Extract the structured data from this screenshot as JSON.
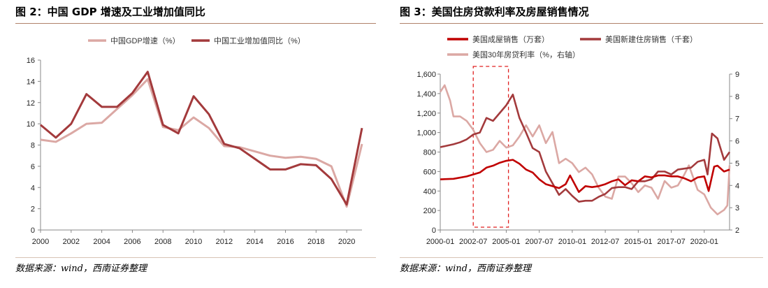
{
  "charts": [
    {
      "title": "图 2：中国 GDP 增速及工业增加值同比",
      "source": "数据来源：wind，西南证券整理"
    },
    {
      "title": "图 3：美国住房贷款利率及房屋销售情况",
      "source": "数据来源：wind，西南证券整理"
    }
  ],
  "chart_data": [
    {
      "type": "line",
      "title": "图 2：中国 GDP 增速及工业增加值同比",
      "xlabel": "",
      "ylabel": "",
      "xlim": [
        2000,
        2021
      ],
      "ylim": [
        0,
        16
      ],
      "yticks": [
        0,
        2,
        4,
        6,
        8,
        10,
        12,
        14,
        16
      ],
      "xticks": [
        2000,
        2002,
        2004,
        2006,
        2008,
        2010,
        2012,
        2014,
        2016,
        2018,
        2020
      ],
      "grid": false,
      "legend": "top",
      "x": [
        2000,
        2001,
        2002,
        2003,
        2004,
        2005,
        2006,
        2007,
        2008,
        2009,
        2010,
        2011,
        2012,
        2013,
        2014,
        2015,
        2016,
        2017,
        2018,
        2019,
        2020,
        2021
      ],
      "series": [
        {
          "name": "中国GDP增速（%）",
          "color": "#dba8a4",
          "values": [
            8.5,
            8.3,
            9.1,
            10.0,
            10.1,
            11.4,
            12.7,
            14.2,
            9.7,
            9.4,
            10.6,
            9.6,
            7.9,
            7.8,
            7.4,
            7.0,
            6.8,
            6.9,
            6.7,
            6.0,
            2.2,
            8.1
          ]
        },
        {
          "name": "中国工业增加值同比（%）",
          "color": "#a33a3c",
          "values": [
            9.9,
            8.7,
            10.0,
            12.8,
            11.6,
            11.6,
            12.9,
            14.9,
            9.9,
            9.1,
            12.6,
            10.9,
            8.1,
            7.7,
            6.7,
            5.7,
            5.7,
            6.2,
            6.1,
            4.8,
            2.4,
            9.6
          ]
        }
      ]
    },
    {
      "type": "line",
      "title": "图 3：美国住房贷款利率及房屋销售情况",
      "xlabel": "",
      "ylabel": "",
      "grid": false,
      "legend": "top",
      "x_range": [
        "2000-01",
        "2021-12"
      ],
      "xticks": [
        "2000-01",
        "2002-07",
        "2005-01",
        "2007-07",
        "2010-01",
        "2012-07",
        "2015-01",
        "2017-07",
        "2020-01"
      ],
      "ylim_left": [
        0,
        1600
      ],
      "yticks_left": [
        0,
        200,
        400,
        600,
        800,
        1000,
        1200,
        1400,
        1600
      ],
      "ytick_labels_left": [
        "0",
        "200",
        "400",
        "600",
        "800",
        "1,000",
        "1,200",
        "1,400",
        "1,600"
      ],
      "ylim_right": [
        2,
        9
      ],
      "yticks_right": [
        2,
        3,
        4,
        5,
        6,
        7,
        8,
        9
      ],
      "highlight_box": {
        "x_range": [
          "2002-07",
          "2005-03"
        ],
        "style": "dashed"
      },
      "series": [
        {
          "name": "美国成屋销售（万套）",
          "axis": "left",
          "color": "#c00000",
          "points": [
            [
              "2000-01",
              520
            ],
            [
              "2001-01",
              525
            ],
            [
              "2002-01",
              550
            ],
            [
              "2003-01",
              590
            ],
            [
              "2003-07",
              640
            ],
            [
              "2004-01",
              660
            ],
            [
              "2004-07",
              690
            ],
            [
              "2005-01",
              710
            ],
            [
              "2005-07",
              720
            ],
            [
              "2006-01",
              680
            ],
            [
              "2006-07",
              620
            ],
            [
              "2007-01",
              590
            ],
            [
              "2007-07",
              520
            ],
            [
              "2008-01",
              470
            ],
            [
              "2008-07",
              450
            ],
            [
              "2009-01",
              430
            ],
            [
              "2009-07",
              470
            ],
            [
              "2009-11",
              560
            ],
            [
              "2010-07",
              390
            ],
            [
              "2011-01",
              450
            ],
            [
              "2011-07",
              440
            ],
            [
              "2012-01",
              450
            ],
            [
              "2012-07",
              470
            ],
            [
              "2013-01",
              500
            ],
            [
              "2013-07",
              520
            ],
            [
              "2014-01",
              460
            ],
            [
              "2014-07",
              510
            ],
            [
              "2015-01",
              500
            ],
            [
              "2015-07",
              550
            ],
            [
              "2016-01",
              540
            ],
            [
              "2016-07",
              560
            ],
            [
              "2017-01",
              560
            ],
            [
              "2017-07",
              550
            ],
            [
              "2018-01",
              550
            ],
            [
              "2018-07",
              530
            ],
            [
              "2019-01",
              500
            ],
            [
              "2019-07",
              540
            ],
            [
              "2020-01",
              550
            ],
            [
              "2020-05",
              400
            ],
            [
              "2020-10",
              650
            ],
            [
              "2021-01",
              660
            ],
            [
              "2021-07",
              600
            ],
            [
              "2021-12",
              620
            ]
          ]
        },
        {
          "name": "美国新建住房销售（千套）",
          "axis": "left",
          "color": "#a33a3c",
          "points": [
            [
              "2000-01",
              850
            ],
            [
              "2001-01",
              880
            ],
            [
              "2001-07",
              900
            ],
            [
              "2002-01",
              930
            ],
            [
              "2002-07",
              980
            ],
            [
              "2003-01",
              1000
            ],
            [
              "2003-07",
              1150
            ],
            [
              "2004-01",
              1120
            ],
            [
              "2004-07",
              1200
            ],
            [
              "2005-01",
              1280
            ],
            [
              "2005-07",
              1390
            ],
            [
              "2006-01",
              1150
            ],
            [
              "2006-07",
              1000
            ],
            [
              "2007-01",
              840
            ],
            [
              "2007-07",
              800
            ],
            [
              "2008-01",
              600
            ],
            [
              "2008-07",
              480
            ],
            [
              "2009-01",
              360
            ],
            [
              "2009-07",
              420
            ],
            [
              "2010-01",
              350
            ],
            [
              "2010-07",
              290
            ],
            [
              "2011-01",
              300
            ],
            [
              "2011-07",
              300
            ],
            [
              "2012-01",
              340
            ],
            [
              "2012-07",
              370
            ],
            [
              "2013-01",
              430
            ],
            [
              "2013-07",
              440
            ],
            [
              "2014-01",
              440
            ],
            [
              "2014-07",
              420
            ],
            [
              "2015-01",
              500
            ],
            [
              "2015-07",
              500
            ],
            [
              "2016-01",
              520
            ],
            [
              "2016-07",
              600
            ],
            [
              "2017-01",
              600
            ],
            [
              "2017-07",
              570
            ],
            [
              "2018-01",
              620
            ],
            [
              "2018-07",
              630
            ],
            [
              "2019-01",
              640
            ],
            [
              "2019-07",
              700
            ],
            [
              "2020-01",
              720
            ],
            [
              "2020-04",
              570
            ],
            [
              "2020-08",
              990
            ],
            [
              "2021-01",
              940
            ],
            [
              "2021-07",
              720
            ],
            [
              "2021-12",
              800
            ]
          ]
        },
        {
          "name": "美国30年房贷利率（%，右轴）",
          "axis": "right",
          "color": "#dba8a4",
          "points": [
            [
              "2000-01",
              8.2
            ],
            [
              "2000-05",
              8.5
            ],
            [
              "2000-10",
              7.8
            ],
            [
              "2001-01",
              7.1
            ],
            [
              "2001-07",
              7.1
            ],
            [
              "2002-01",
              6.9
            ],
            [
              "2002-07",
              6.5
            ],
            [
              "2003-01",
              5.9
            ],
            [
              "2003-07",
              5.5
            ],
            [
              "2004-01",
              5.6
            ],
            [
              "2004-07",
              6.0
            ],
            [
              "2005-01",
              5.7
            ],
            [
              "2005-07",
              5.8
            ],
            [
              "2006-01",
              6.2
            ],
            [
              "2006-07",
              6.7
            ],
            [
              "2007-01",
              6.2
            ],
            [
              "2007-07",
              6.7
            ],
            [
              "2008-01",
              5.9
            ],
            [
              "2008-07",
              6.4
            ],
            [
              "2009-01",
              5.0
            ],
            [
              "2009-07",
              5.2
            ],
            [
              "2010-01",
              5.0
            ],
            [
              "2010-07",
              4.6
            ],
            [
              "2011-01",
              4.8
            ],
            [
              "2011-07",
              4.5
            ],
            [
              "2012-01",
              3.9
            ],
            [
              "2012-07",
              3.5
            ],
            [
              "2013-01",
              3.4
            ],
            [
              "2013-07",
              4.4
            ],
            [
              "2014-01",
              4.4
            ],
            [
              "2014-07",
              4.1
            ],
            [
              "2015-01",
              3.7
            ],
            [
              "2015-07",
              4.0
            ],
            [
              "2016-01",
              3.9
            ],
            [
              "2016-07",
              3.4
            ],
            [
              "2017-01",
              4.2
            ],
            [
              "2017-07",
              3.9
            ],
            [
              "2018-01",
              4.0
            ],
            [
              "2018-07",
              4.5
            ],
            [
              "2018-11",
              4.9
            ],
            [
              "2019-07",
              3.8
            ],
            [
              "2020-01",
              3.6
            ],
            [
              "2020-07",
              3.0
            ],
            [
              "2021-01",
              2.7
            ],
            [
              "2021-07",
              2.9
            ],
            [
              "2021-10",
              3.1
            ],
            [
              "2021-12",
              4.9
            ]
          ]
        }
      ]
    }
  ]
}
